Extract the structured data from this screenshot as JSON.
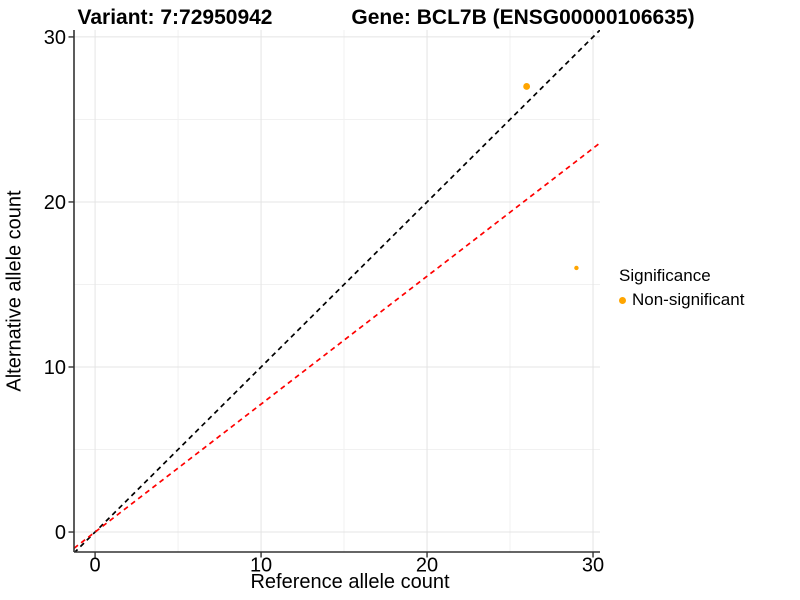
{
  "header": {
    "variant_title": "Variant: 7:72950942",
    "gene_title": "Gene: BCL7B (ENSG00000106635)"
  },
  "chart_data": {
    "type": "scatter",
    "xlabel": "Reference allele count",
    "ylabel": "Alternative allele count",
    "xlim": [
      -1.27,
      30.42
    ],
    "ylim": [
      -1.21,
      30.42
    ],
    "xticks": [
      0,
      10,
      20,
      30
    ],
    "yticks": [
      0,
      10,
      20,
      30
    ],
    "xticks_minor": [
      5,
      15,
      25
    ],
    "yticks_minor": [
      5,
      15,
      25
    ],
    "grid": "major+minor",
    "series": [
      {
        "name": "Non-significant",
        "color": "#FFA500",
        "points": [
          {
            "x": 26,
            "y": 27,
            "radius": 3.4
          },
          {
            "x": 29,
            "y": 16,
            "radius": 2.2
          }
        ]
      }
    ],
    "reference_lines": [
      {
        "name": "identity-line",
        "slope": 1,
        "intercept": 0,
        "color": "#000000",
        "style": "dashed"
      },
      {
        "name": "expected-ratio-line",
        "slope": 0.775,
        "intercept": 0,
        "color": "#FF0000",
        "style": "dashed"
      }
    ],
    "legend": {
      "title": "Significance",
      "position": "right-middle",
      "items": [
        {
          "label": "Non-significant",
          "color": "#FFA500"
        }
      ]
    },
    "style": {
      "major_grid_color": "#E4E4E4",
      "minor_grid_color": "#F1F1F1",
      "axis_color": "#333333",
      "panel_background": "#FFFFFF"
    }
  }
}
